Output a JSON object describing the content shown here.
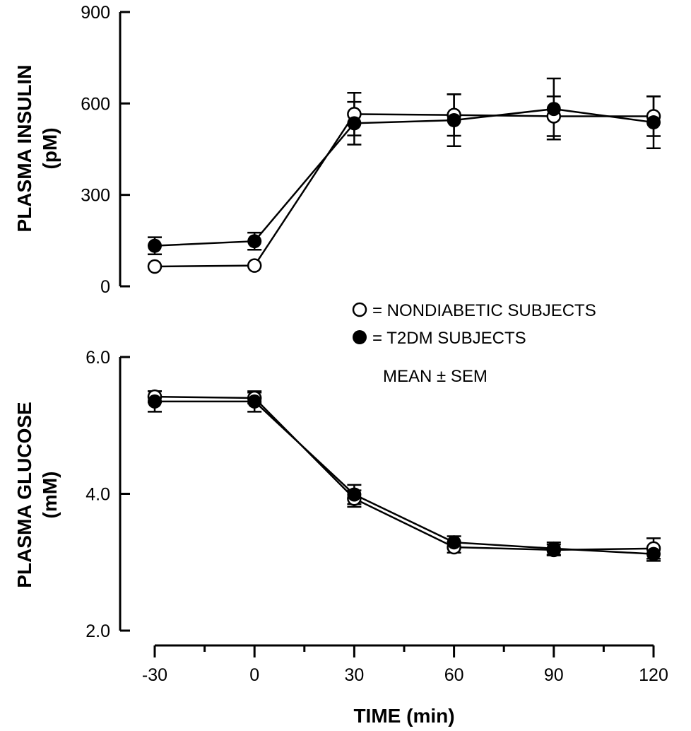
{
  "legend": {
    "nondiabetic_label": "= NONDIABETIC SUBJECTS",
    "t2dm_label": "= T2DM SUBJECTS",
    "stat_label": "MEAN ± SEM"
  },
  "chart_data": [
    {
      "type": "line",
      "ylabel_line1": "PLASMA INSULIN",
      "ylabel_line2": "(pM)",
      "ylim": [
        0,
        900
      ],
      "yticks": [
        "0",
        "300",
        "600",
        "900"
      ],
      "x": [
        -30,
        0,
        30,
        60,
        90,
        120
      ],
      "grid": false,
      "series": [
        {
          "name": "NONDIABETIC SUBJECTS",
          "marker": "open-circle",
          "values": [
            65,
            68,
            565,
            562,
            558,
            558
          ],
          "errors": [
            0,
            0,
            70,
            68,
            65,
            65
          ]
        },
        {
          "name": "T2DM SUBJECTS",
          "marker": "filled-circle",
          "values": [
            133,
            148,
            535,
            545,
            582,
            538
          ],
          "errors": [
            28,
            28,
            70,
            85,
            100,
            85
          ]
        }
      ]
    },
    {
      "type": "line",
      "ylabel_line1": "PLASMA GLUCOSE",
      "ylabel_line2": "(mM)",
      "ylim": [
        2.0,
        6.0
      ],
      "yticks": [
        "2.0",
        "4.0",
        "6.0"
      ],
      "x": [
        -30,
        0,
        30,
        60,
        90,
        120
      ],
      "xticks": [
        "-30",
        "0",
        "30",
        "60",
        "90",
        "120"
      ],
      "xlabel": "TIME (min)",
      "grid": false,
      "series": [
        {
          "name": "NONDIABETIC SUBJECTS",
          "marker": "open-circle",
          "values": [
            5.42,
            5.4,
            3.93,
            3.22,
            3.18,
            3.2
          ],
          "errors": [
            0.08,
            0.08,
            0.12,
            0.08,
            0.08,
            0.15
          ]
        },
        {
          "name": "T2DM SUBJECTS",
          "marker": "filled-circle",
          "values": [
            5.35,
            5.35,
            3.99,
            3.29,
            3.2,
            3.12
          ],
          "errors": [
            0.15,
            0.15,
            0.14,
            0.09,
            0.09,
            0.1
          ]
        }
      ]
    }
  ]
}
